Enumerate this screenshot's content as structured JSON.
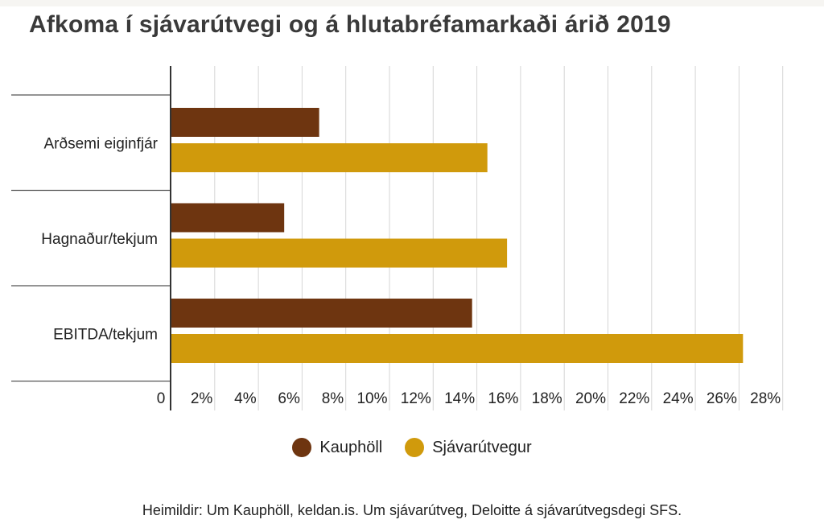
{
  "chart_data": {
    "type": "bar",
    "orientation": "horizontal",
    "title": "Afkoma í sjávarútvegi og á hlutabréfamarkaði árið 2019",
    "categories": [
      "Arðsemi eiginfjár",
      "Hagnaður/tekjum",
      "EBITDA/tekjum"
    ],
    "series": [
      {
        "name": "Kauphöll",
        "values": [
          6.8,
          5.2,
          13.8
        ],
        "color": "#6e3510"
      },
      {
        "name": "Sjávarútvegur",
        "values": [
          14.5,
          15.4,
          26.2
        ],
        "color": "#d09a0c"
      }
    ],
    "xlim": [
      0,
      28
    ],
    "xticks": [
      "0",
      "2%",
      "4%",
      "6%",
      "8%",
      "10%",
      "12%",
      "14%",
      "16%",
      "18%",
      "20%",
      "22%",
      "24%",
      "26%",
      "28%"
    ],
    "xlabel": "",
    "ylabel": "",
    "grid": true,
    "legend_position": "bottom-center"
  },
  "source": "Heimildir: Um Kauphöll, keldan.is. Um sjávarútveg, Deloitte á sjávarútvegsdegi SFS."
}
